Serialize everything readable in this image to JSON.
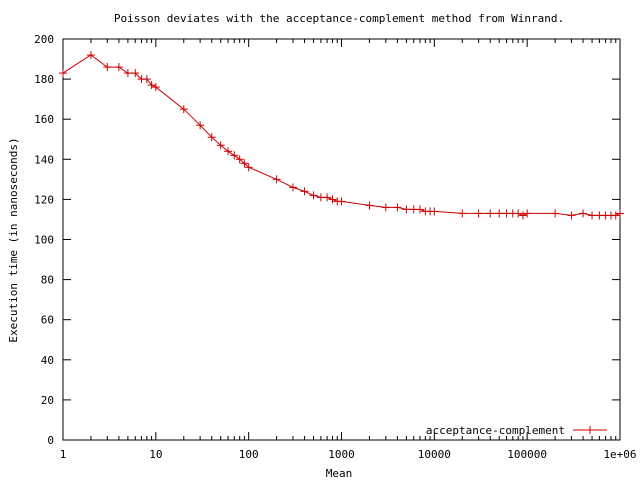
{
  "chart_data": {
    "type": "line",
    "title": "Poisson deviates with the acceptance-complement method from Winrand.",
    "xlabel": "Mean",
    "ylabel": "Execution time (in nanoseconds)",
    "xscale": "log",
    "xlim": [
      1,
      1000000
    ],
    "ylim": [
      0,
      200
    ],
    "x_ticks": [
      {
        "value": 1,
        "label": "1"
      },
      {
        "value": 10,
        "label": "10"
      },
      {
        "value": 100,
        "label": "100"
      },
      {
        "value": 1000,
        "label": "1000"
      },
      {
        "value": 10000,
        "label": "10000"
      },
      {
        "value": 100000,
        "label": "100000"
      },
      {
        "value": 1000000,
        "label": "1e+06"
      }
    ],
    "y_ticks": [
      {
        "value": 0,
        "label": "0"
      },
      {
        "value": 20,
        "label": "20"
      },
      {
        "value": 40,
        "label": "40"
      },
      {
        "value": 60,
        "label": "60"
      },
      {
        "value": 80,
        "label": "80"
      },
      {
        "value": 100,
        "label": "100"
      },
      {
        "value": 120,
        "label": "120"
      },
      {
        "value": 140,
        "label": "140"
      },
      {
        "value": 160,
        "label": "160"
      },
      {
        "value": 180,
        "label": "180"
      },
      {
        "value": 200,
        "label": "200"
      }
    ],
    "grid": false,
    "legend_position": "bottom-right",
    "series": [
      {
        "name": "acceptance-complement",
        "color": "#cc0000",
        "marker": "plus",
        "x": [
          1,
          2,
          3,
          4,
          5,
          6,
          7,
          8,
          9,
          10,
          20,
          30,
          40,
          50,
          60,
          70,
          80,
          90,
          100,
          200,
          300,
          400,
          500,
          600,
          700,
          800,
          900,
          1000,
          2000,
          3000,
          4000,
          5000,
          6000,
          7000,
          8000,
          9000,
          10000,
          20000,
          30000,
          40000,
          50000,
          60000,
          70000,
          80000,
          90000,
          100000,
          200000,
          300000,
          400000,
          500000,
          600000,
          700000,
          800000,
          900000,
          1000000
        ],
        "y": [
          183,
          192,
          186,
          186,
          183,
          183,
          180,
          180,
          177,
          176,
          165,
          157,
          151,
          147,
          144,
          142,
          140,
          138,
          136,
          130,
          126,
          124,
          122,
          121,
          121,
          120,
          119,
          119,
          117,
          116,
          116,
          115,
          115,
          115,
          114,
          114,
          114,
          113,
          113,
          113,
          113,
          113,
          113,
          113,
          112,
          113,
          113,
          112,
          113,
          112,
          112,
          112,
          112,
          112,
          113
        ]
      }
    ]
  }
}
